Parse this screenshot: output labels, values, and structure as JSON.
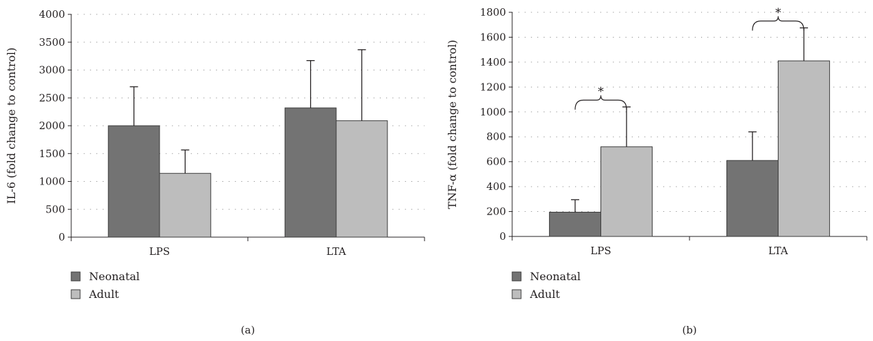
{
  "legend": {
    "items": [
      {
        "label": "Neonatal",
        "color": "#737373"
      },
      {
        "label": "Adult",
        "color": "#bdbdbd"
      }
    ]
  },
  "chart_data": [
    {
      "type": "bar",
      "panel_label": "(a)",
      "categories": [
        "LPS",
        "LTA"
      ],
      "series": [
        {
          "name": "Neonatal",
          "color": "#737373",
          "values": [
            2000,
            2320
          ],
          "errors": [
            700,
            850
          ]
        },
        {
          "name": "Adult",
          "color": "#bdbdbd",
          "values": [
            1145,
            2090
          ],
          "errors": [
            420,
            1275
          ]
        }
      ],
      "ylabel": "IL-6 (fold change to control)",
      "ylim": [
        0,
        4000
      ],
      "yticks": [
        0,
        500,
        1000,
        1500,
        2000,
        2500,
        3000,
        3500,
        4000
      ],
      "grid": true,
      "legend_position": "bottom-left",
      "annotations": []
    },
    {
      "type": "bar",
      "panel_label": "(b)",
      "categories": [
        "LPS",
        "LTA"
      ],
      "series": [
        {
          "name": "Neonatal",
          "color": "#737373",
          "values": [
            195,
            610
          ],
          "errors": [
            100,
            230
          ]
        },
        {
          "name": "Adult",
          "color": "#bdbdbd",
          "values": [
            720,
            1410
          ],
          "errors": [
            320,
            265
          ]
        }
      ],
      "ylabel": "TNF-α (fold change to control)",
      "ylim": [
        0,
        1800
      ],
      "yticks": [
        0,
        200,
        400,
        600,
        800,
        1000,
        1200,
        1400,
        1600,
        1800
      ],
      "grid": true,
      "legend_position": "bottom-left",
      "annotations": [
        {
          "category": "LPS",
          "text": "*"
        },
        {
          "category": "LTA",
          "text": "*"
        }
      ]
    }
  ]
}
